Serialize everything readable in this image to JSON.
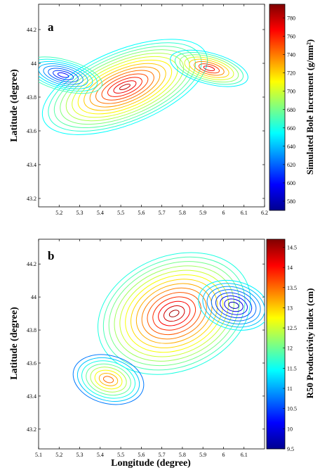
{
  "chart_data": [
    {
      "type": "contour",
      "panel_label": "a",
      "ylabel": "Latitude (degree)",
      "xlim": [
        5.1,
        6.2
      ],
      "ylim": [
        43.15,
        44.35
      ],
      "x_ticks": [
        "5.2",
        "5.3",
        "5.4",
        "5.5",
        "5.6",
        "5.7",
        "5.8",
        "5.9",
        "6",
        "6.1",
        "6.2"
      ],
      "y_ticks": [
        "43.2",
        "43.4",
        "43.6",
        "43.8",
        "44",
        "44.2"
      ],
      "colorbar": {
        "label": "Simulated Bole Increment (g/mm²)",
        "range": [
          570,
          795
        ],
        "ticks": [
          "580",
          "600",
          "620",
          "640",
          "660",
          "680",
          "700",
          "720",
          "740",
          "760",
          "780"
        ]
      },
      "features": [
        {
          "x": 5.52,
          "y": 43.86,
          "level": "max",
          "approx_value": 780
        },
        {
          "x": 5.22,
          "y": 43.93,
          "level": "min",
          "approx_value": 600
        },
        {
          "x": 5.93,
          "y": 43.97,
          "level": "local max",
          "approx_value": 770
        }
      ]
    },
    {
      "type": "contour",
      "panel_label": "b",
      "ylabel": "Latitude (degree)",
      "xlabel": "Longitude (degree)",
      "xlim": [
        5.1,
        6.2
      ],
      "ylim": [
        43.08,
        44.35
      ],
      "x_ticks": [
        "5.1",
        "5.2",
        "5.3",
        "5.4",
        "5.5",
        "5.6",
        "5.7",
        "5.8",
        "5.9",
        "6",
        "6.1"
      ],
      "y_ticks": [
        "43.2",
        "43.4",
        "43.6",
        "43.8",
        "44",
        "44.2"
      ],
      "colorbar": {
        "label": "R50 Productivity index (cm)",
        "range": [
          9.5,
          14.7
        ],
        "ticks": [
          "9.5",
          "10",
          "10.5",
          "11",
          "11.5",
          "12",
          "12.5",
          "13",
          "13.5",
          "14",
          "14.5"
        ]
      },
      "features": [
        {
          "x": 5.76,
          "y": 43.9,
          "level": "max",
          "approx_value": 14.5
        },
        {
          "x": 5.44,
          "y": 43.5,
          "level": "local max",
          "approx_value": 13.5
        },
        {
          "x": 6.05,
          "y": 43.95,
          "level": "min",
          "approx_value": 9.8
        }
      ]
    }
  ]
}
